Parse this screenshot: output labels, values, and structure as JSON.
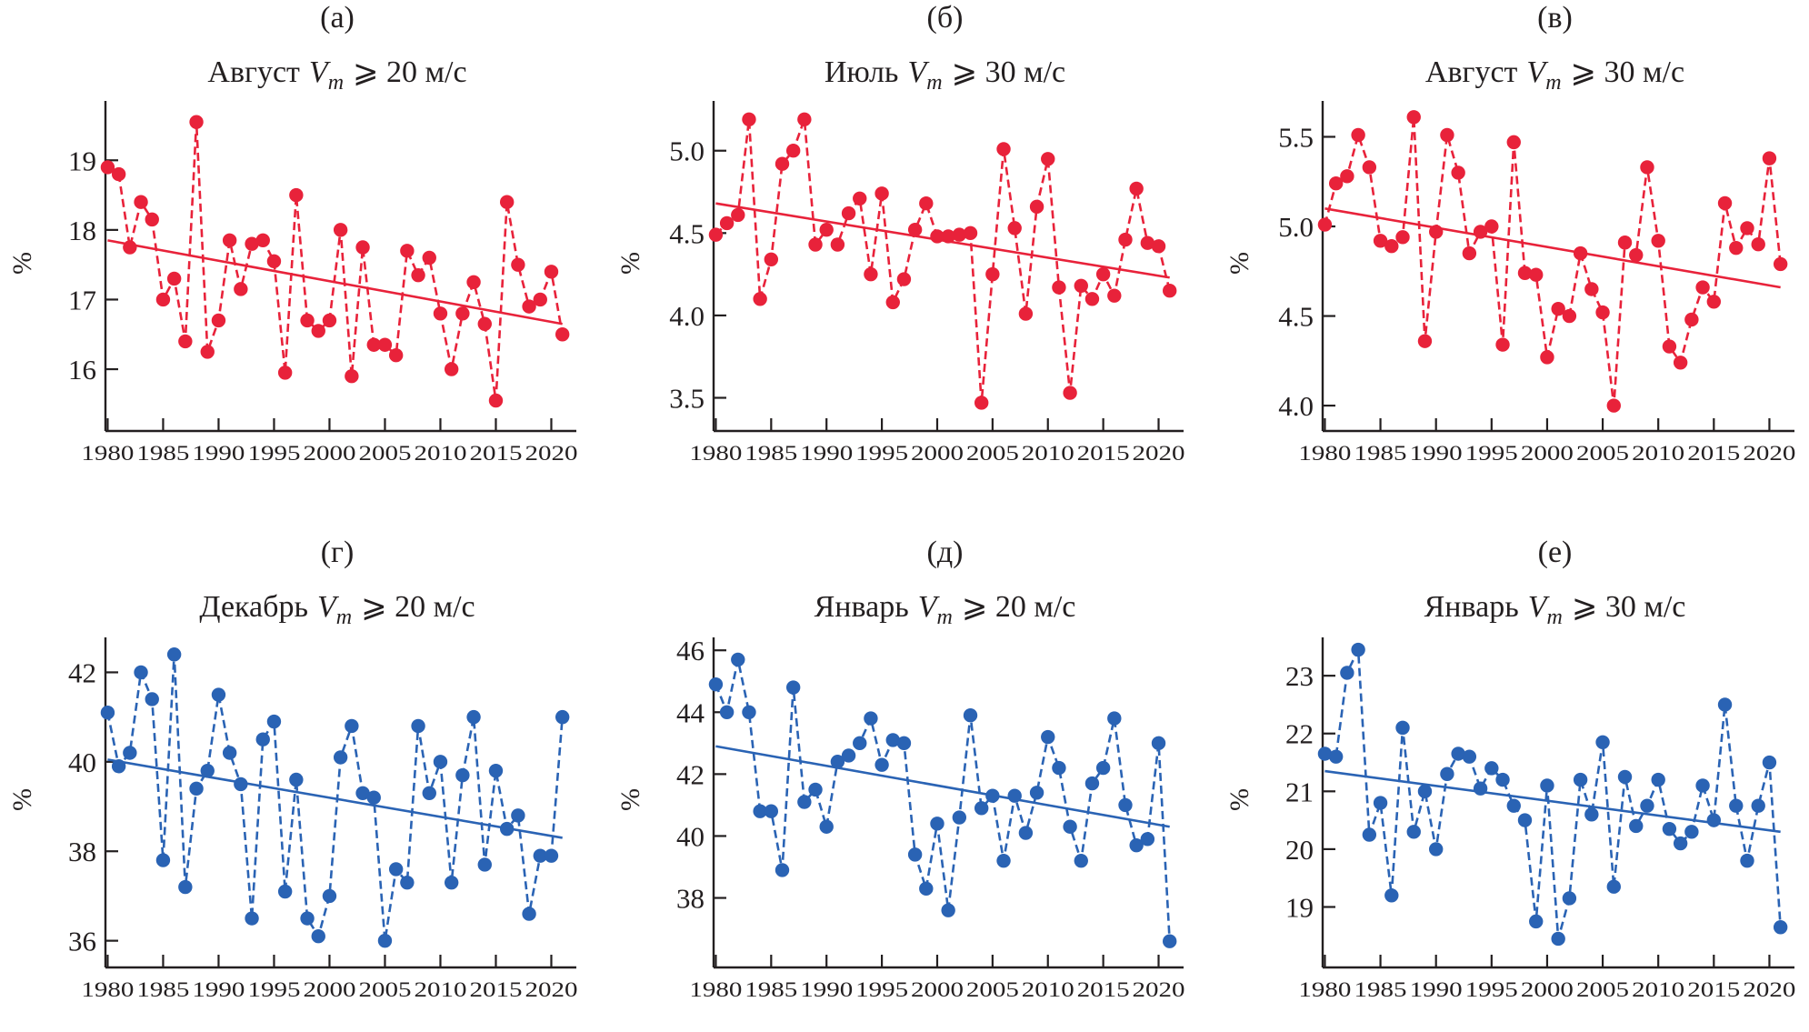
{
  "chart_data": [
    {
      "type": "line",
      "panel_label": "(а)",
      "title": "Август",
      "title_var": "V",
      "title_sub": "m",
      "title_rest": "⩾ 20 м/с",
      "xlabel": "",
      "ylabel": "%",
      "color": "#e8223a",
      "x": [
        1980,
        1981,
        1982,
        1983,
        1984,
        1985,
        1986,
        1987,
        1988,
        1989,
        1990,
        1991,
        1992,
        1993,
        1994,
        1995,
        1996,
        1997,
        1998,
        1999,
        2000,
        2001,
        2002,
        2003,
        2004,
        2005,
        2006,
        2007,
        2008,
        2009,
        2010,
        2011,
        2012,
        2013,
        2014,
        2015,
        2016,
        2017,
        2018,
        2019,
        2020,
        2021
      ],
      "series": [
        {
          "name": "Август Vm ⩾ 20 м/с",
          "style": "dashed-markers",
          "values": [
            18.9,
            18.8,
            17.75,
            18.4,
            18.15,
            17.0,
            17.3,
            16.4,
            19.55,
            16.25,
            16.7,
            17.85,
            17.15,
            17.8,
            17.85,
            17.55,
            15.95,
            18.5,
            16.7,
            16.55,
            16.7,
            18.0,
            15.9,
            17.75,
            16.35,
            16.35,
            16.2,
            17.7,
            17.35,
            17.6,
            16.8,
            16.0,
            16.8,
            17.25,
            16.65,
            15.55,
            18.4,
            17.5,
            16.9,
            17.0,
            17.4,
            16.5
          ]
        },
        {
          "name": "trend",
          "style": "solid",
          "x": [
            1980,
            2021
          ],
          "values": [
            17.85,
            16.65
          ]
        }
      ],
      "xlim": [
        1979.8,
        2021.6
      ],
      "ylim": [
        15.4,
        19.8
      ],
      "xticks": [
        1980,
        1985,
        1990,
        1995,
        2000,
        2005,
        2010,
        2015,
        2020
      ],
      "yticks": [
        16,
        17,
        18,
        19
      ],
      "ytick_labels": [
        "16",
        "17",
        "18",
        "19"
      ],
      "grid": false
    },
    {
      "type": "line",
      "panel_label": "(б)",
      "title": "Июль",
      "title_var": "V",
      "title_sub": "m",
      "title_rest": "⩾ 30 м/с",
      "xlabel": "",
      "ylabel": "%",
      "color": "#e8223a",
      "x": [
        1980,
        1981,
        1982,
        1983,
        1984,
        1985,
        1986,
        1987,
        1988,
        1989,
        1990,
        1991,
        1992,
        1993,
        1994,
        1995,
        1996,
        1997,
        1998,
        1999,
        2000,
        2001,
        2002,
        2003,
        2004,
        2005,
        2006,
        2007,
        2008,
        2009,
        2010,
        2011,
        2012,
        2013,
        2014,
        2015,
        2016,
        2017,
        2018,
        2019,
        2020,
        2021
      ],
      "series": [
        {
          "name": "Июль Vm ⩾ 30 м/с",
          "style": "dashed-markers",
          "values": [
            4.49,
            4.56,
            4.61,
            5.19,
            4.1,
            4.34,
            4.92,
            5.0,
            5.19,
            4.43,
            4.52,
            4.43,
            4.62,
            4.71,
            4.25,
            4.74,
            4.08,
            4.22,
            4.52,
            4.68,
            4.48,
            4.48,
            4.49,
            4.5,
            3.47,
            4.25,
            5.01,
            4.53,
            4.01,
            4.66,
            4.95,
            4.17,
            3.53,
            4.18,
            4.1,
            4.25,
            4.12,
            4.46,
            4.77,
            4.44,
            4.42,
            4.15
          ]
        },
        {
          "name": "trend",
          "style": "solid",
          "x": [
            1980,
            2021
          ],
          "values": [
            4.68,
            4.23
          ]
        }
      ],
      "xlim": [
        1979.8,
        2021.6
      ],
      "ylim": [
        3.42,
        5.28
      ],
      "xticks": [
        1980,
        1985,
        1990,
        1995,
        2000,
        2005,
        2010,
        2015,
        2020
      ],
      "yticks": [
        3.5,
        4.0,
        4.5,
        5.0
      ],
      "ytick_labels": [
        "3.5",
        "4.0",
        "4.5",
        "5.0"
      ],
      "grid": false
    },
    {
      "type": "line",
      "panel_label": "(в)",
      "title": "Август",
      "title_var": "V",
      "title_sub": "m",
      "title_rest": "⩾ 30 м/с",
      "xlabel": "",
      "ylabel": "%",
      "color": "#e8223a",
      "x": [
        1980,
        1981,
        1982,
        1983,
        1984,
        1985,
        1986,
        1987,
        1988,
        1989,
        1990,
        1991,
        1992,
        1993,
        1994,
        1995,
        1996,
        1997,
        1998,
        1999,
        2000,
        2001,
        2002,
        2003,
        2004,
        2005,
        2006,
        2007,
        2008,
        2009,
        2010,
        2011,
        2012,
        2013,
        2014,
        2015,
        2016,
        2017,
        2018,
        2019,
        2020,
        2021
      ],
      "series": [
        {
          "name": "Август Vm ⩾ 30 м/с",
          "style": "dashed-markers",
          "values": [
            5.01,
            5.24,
            5.28,
            5.51,
            5.33,
            4.92,
            4.89,
            4.94,
            5.61,
            4.36,
            4.97,
            5.51,
            5.3,
            4.85,
            4.97,
            5.0,
            4.34,
            5.47,
            4.74,
            4.73,
            4.27,
            4.54,
            4.5,
            4.85,
            4.65,
            4.52,
            4.0,
            4.91,
            4.84,
            5.33,
            4.92,
            4.33,
            4.24,
            4.48,
            4.66,
            4.58,
            5.13,
            4.88,
            4.99,
            4.9,
            5.38,
            4.79
          ]
        },
        {
          "name": "trend",
          "style": "solid",
          "x": [
            1980,
            2021
          ],
          "values": [
            5.1,
            4.66
          ]
        }
      ],
      "xlim": [
        1979.8,
        2021.6
      ],
      "ylim": [
        3.97,
        5.68
      ],
      "xticks": [
        1980,
        1985,
        1990,
        1995,
        2000,
        2005,
        2010,
        2015,
        2020
      ],
      "yticks": [
        4.0,
        4.5,
        5.0,
        5.5
      ],
      "ytick_labels": [
        "4.0",
        "4.5",
        "5.0",
        "5.5"
      ],
      "grid": false
    },
    {
      "type": "line",
      "panel_label": "(г)",
      "title": "Декабрь",
      "title_var": "V",
      "title_sub": "m",
      "title_rest": "⩾ 20 м/с",
      "xlabel": "",
      "ylabel": "%",
      "color": "#2a63b4",
      "x": [
        1980,
        1981,
        1982,
        1983,
        1984,
        1985,
        1986,
        1987,
        1988,
        1989,
        1990,
        1991,
        1992,
        1993,
        1994,
        1995,
        1996,
        1997,
        1998,
        1999,
        2000,
        2001,
        2002,
        2003,
        2004,
        2005,
        2006,
        2007,
        2008,
        2009,
        2010,
        2011,
        2012,
        2013,
        2014,
        2015,
        2016,
        2017,
        2018,
        2019,
        2020,
        2021
      ],
      "series": [
        {
          "name": "Декабрь Vm ⩾ 20 м/с",
          "style": "dashed-markers",
          "values": [
            41.1,
            39.9,
            40.2,
            42.0,
            41.4,
            37.8,
            42.4,
            37.2,
            39.4,
            39.8,
            41.5,
            40.2,
            39.5,
            36.5,
            40.5,
            40.9,
            37.1,
            39.6,
            36.5,
            36.1,
            37.0,
            40.1,
            40.8,
            39.3,
            39.2,
            36.0,
            37.6,
            37.3,
            40.8,
            39.3,
            40.0,
            37.3,
            39.7,
            41.0,
            37.7,
            39.8,
            38.5,
            38.8,
            36.6,
            37.9,
            37.9,
            41.0
          ]
        },
        {
          "name": "trend",
          "style": "solid",
          "x": [
            1980,
            2021
          ],
          "values": [
            40.05,
            38.3
          ]
        }
      ],
      "xlim": [
        1979.8,
        2021.6
      ],
      "ylim": [
        35.85,
        42.7
      ],
      "xticks": [
        1980,
        1985,
        1990,
        1995,
        2000,
        2005,
        2010,
        2015,
        2020
      ],
      "yticks": [
        36,
        38,
        40,
        42
      ],
      "ytick_labels": [
        "36",
        "38",
        "40",
        "42"
      ],
      "grid": false
    },
    {
      "type": "line",
      "panel_label": "(д)",
      "title": "Январь",
      "title_var": "V",
      "title_sub": "m",
      "title_rest": "⩾ 20 м/с",
      "xlabel": "",
      "ylabel": "%",
      "color": "#2a63b4",
      "x": [
        1980,
        1981,
        1982,
        1983,
        1984,
        1985,
        1986,
        1987,
        1988,
        1989,
        1990,
        1991,
        1992,
        1993,
        1994,
        1995,
        1996,
        1997,
        1998,
        1999,
        2000,
        2001,
        2002,
        2003,
        2004,
        2005,
        2006,
        2007,
        2008,
        2009,
        2010,
        2011,
        2012,
        2013,
        2014,
        2015,
        2016,
        2017,
        2018,
        2019,
        2020,
        2021
      ],
      "series": [
        {
          "name": "Январь Vm ⩾ 20 м/с",
          "style": "dashed-markers",
          "values": [
            44.9,
            44.0,
            45.7,
            44.0,
            40.8,
            40.8,
            38.9,
            44.8,
            41.1,
            41.5,
            40.3,
            42.4,
            42.6,
            43.0,
            43.8,
            42.3,
            43.1,
            43.0,
            39.4,
            38.3,
            40.4,
            37.6,
            40.6,
            43.9,
            40.9,
            41.3,
            39.2,
            41.3,
            40.1,
            41.4,
            43.2,
            42.2,
            40.3,
            39.2,
            41.7,
            42.2,
            43.8,
            41.0,
            39.7,
            39.9,
            43.0,
            36.6
          ]
        },
        {
          "name": "trend",
          "style": "solid",
          "x": [
            1980,
            2021
          ],
          "values": [
            42.9,
            40.3
          ]
        }
      ],
      "xlim": [
        1979.8,
        2021.6
      ],
      "ylim": [
        36.4,
        46.3
      ],
      "xticks": [
        1980,
        1985,
        1990,
        1995,
        2000,
        2005,
        2010,
        2015,
        2020
      ],
      "yticks": [
        38,
        40,
        42,
        44,
        46
      ],
      "ytick_labels": [
        "38",
        "40",
        "42",
        "44",
        "46"
      ],
      "grid": false
    },
    {
      "type": "line",
      "panel_label": "(е)",
      "title": "Январь",
      "title_var": "V",
      "title_sub": "m",
      "title_rest": "⩾ 30 м/с",
      "xlabel": "",
      "ylabel": "%",
      "color": "#2a63b4",
      "x": [
        1980,
        1981,
        1982,
        1983,
        1984,
        1985,
        1986,
        1987,
        1988,
        1989,
        1990,
        1991,
        1992,
        1993,
        1994,
        1995,
        1996,
        1997,
        1998,
        1999,
        2000,
        2001,
        2002,
        2003,
        2004,
        2005,
        2006,
        2007,
        2008,
        2009,
        2010,
        2011,
        2012,
        2013,
        2014,
        2015,
        2016,
        2017,
        2018,
        2019,
        2020,
        2021
      ],
      "series": [
        {
          "name": "Январь Vm ⩾ 30 м/с",
          "style": "dashed-markers",
          "values": [
            21.65,
            21.6,
            23.05,
            23.45,
            20.25,
            20.8,
            19.2,
            22.1,
            20.3,
            21.0,
            20.0,
            21.3,
            21.65,
            21.6,
            21.05,
            21.4,
            21.2,
            20.75,
            20.5,
            18.75,
            21.1,
            18.45,
            19.15,
            21.2,
            20.6,
            21.85,
            19.35,
            21.25,
            20.4,
            20.75,
            21.2,
            20.35,
            20.1,
            20.3,
            21.1,
            20.5,
            22.5,
            20.75,
            19.8,
            20.75,
            21.5,
            18.65
          ]
        },
        {
          "name": "trend",
          "style": "solid",
          "x": [
            1980,
            2021
          ],
          "values": [
            21.35,
            20.3
          ]
        }
      ],
      "xlim": [
        1979.8,
        2021.6
      ],
      "ylim": [
        18.3,
        23.6
      ],
      "xticks": [
        1980,
        1985,
        1990,
        1995,
        2000,
        2005,
        2010,
        2015,
        2020
      ],
      "yticks": [
        19,
        20,
        21,
        22,
        23
      ],
      "ytick_labels": [
        "19",
        "20",
        "21",
        "22",
        "23"
      ],
      "grid": false
    }
  ]
}
